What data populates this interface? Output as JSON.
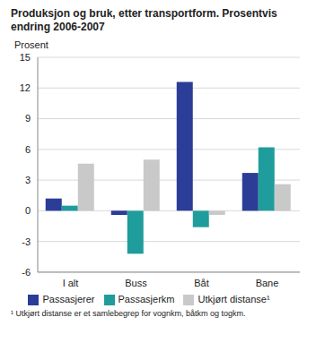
{
  "chart_data": {
    "type": "bar",
    "title": "Produksjon og bruk, etter transportform. Prosentvis endring 2006-2007",
    "y_label": "Prosent",
    "footnote": "¹ Utkjørt distanse er et samlebegrep for vognkm, båtkm og togkm.",
    "categories": [
      "I alt",
      "Buss",
      "Båt",
      "Bane"
    ],
    "series": [
      {
        "name": "Passasjerer",
        "color": "#2b3d97",
        "values": [
          1.2,
          -0.4,
          12.6,
          3.7
        ]
      },
      {
        "name": "Passasjerkm",
        "color": "#1f9c9c",
        "values": [
          0.5,
          -4.2,
          -1.6,
          6.2
        ]
      },
      {
        "name": "Utkjørt distanse¹",
        "color": "#c9c9c9",
        "values": [
          4.6,
          5.0,
          -0.4,
          2.6
        ]
      }
    ],
    "ylim": [
      -6,
      15
    ],
    "yticks": [
      -6,
      -3,
      0,
      3,
      6,
      9,
      12,
      15
    ],
    "grid": true,
    "legend": "bottom"
  }
}
